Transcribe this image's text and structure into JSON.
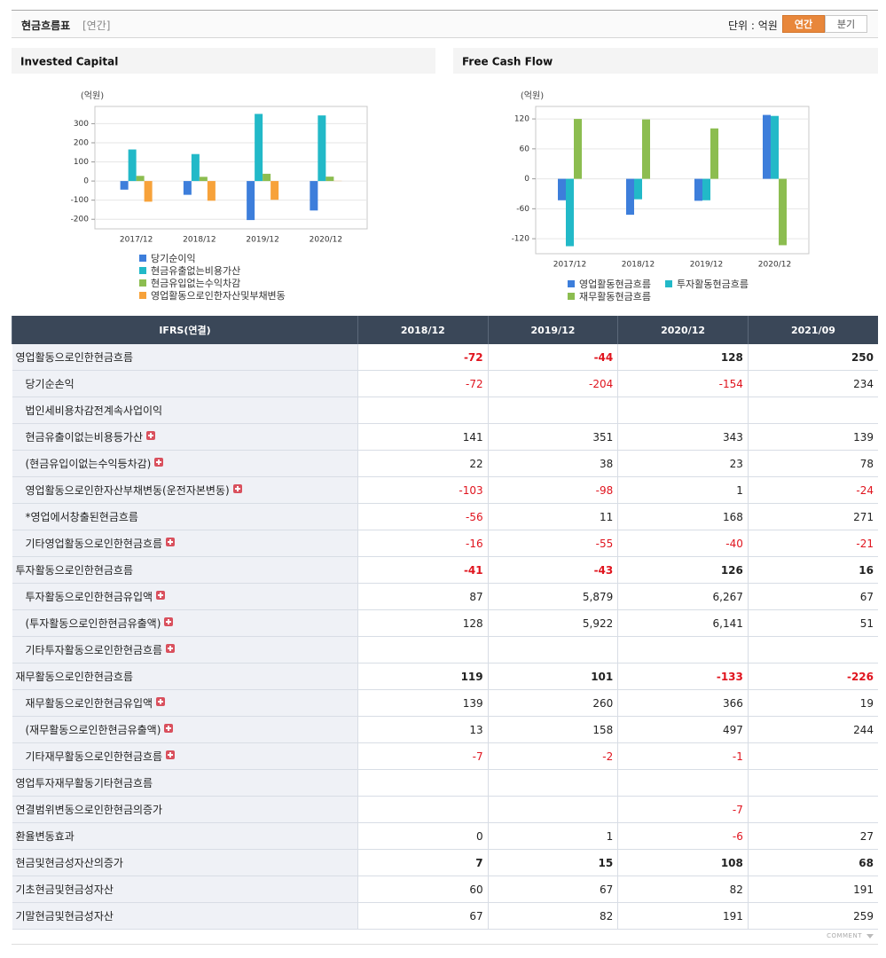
{
  "header": {
    "title": "현금흐름표",
    "period": "[연간]",
    "unit": "단위 : 억원",
    "tabs": [
      "연간",
      "분기"
    ],
    "active_tab": 0
  },
  "chart_data": [
    {
      "type": "bar",
      "title": "Invested Capital",
      "y_label": "(억원)",
      "categories": [
        "2017/12",
        "2018/12",
        "2019/12",
        "2020/12"
      ],
      "series": [
        {
          "name": "당기순이익",
          "color": "#3d7edb",
          "values": [
            -45,
            -72,
            -204,
            -154
          ]
        },
        {
          "name": "현금유출없는비용가산",
          "color": "#22b9c8",
          "values": [
            165,
            141,
            351,
            343
          ]
        },
        {
          "name": "현금유입없는수익차감",
          "color": "#8cbd50",
          "values": [
            27,
            22,
            38,
            23
          ]
        },
        {
          "name": "영업활동으로인한자산및부채변동",
          "color": "#f7a23a",
          "values": [
            -108,
            -103,
            -98,
            1
          ]
        }
      ],
      "ylim": [
        -250,
        390
      ],
      "yticks": [
        -200,
        -100,
        0,
        100,
        200,
        300
      ],
      "grid": true
    },
    {
      "type": "bar",
      "title": "Free Cash Flow",
      "y_label": "(억원)",
      "categories": [
        "2017/12",
        "2018/12",
        "2019/12",
        "2020/12"
      ],
      "series": [
        {
          "name": "영업활동현금흐름",
          "color": "#3d7edb",
          "values": [
            -43,
            -72,
            -44,
            128
          ]
        },
        {
          "name": "투자활동현금흐름",
          "color": "#22b9c8",
          "values": [
            -135,
            -41,
            -43,
            126
          ]
        },
        {
          "name": "재무활동현금흐름",
          "color": "#8cbd50",
          "values": [
            120,
            119,
            101,
            -133
          ]
        }
      ],
      "ylim": [
        -150,
        145
      ],
      "yticks": [
        -120,
        -60,
        0,
        60,
        120
      ],
      "grid": true
    }
  ],
  "table": {
    "columns": [
      "IFRS(연결)",
      "2018/12",
      "2019/12",
      "2020/12",
      "2021/09"
    ],
    "rows": [
      {
        "label": "영업활동으로인한현금흐름",
        "indent": false,
        "bold": true,
        "expandable": false,
        "values": [
          "-72",
          "-44",
          "128",
          "250"
        ]
      },
      {
        "label": "당기순손익",
        "indent": true,
        "bold": false,
        "expandable": false,
        "values": [
          "-72",
          "-204",
          "-154",
          "234"
        ]
      },
      {
        "label": "법인세비용차감전계속사업이익",
        "indent": true,
        "bold": false,
        "expandable": false,
        "values": [
          null,
          null,
          null,
          null
        ]
      },
      {
        "label": "현금유출이없는비용등가산",
        "indent": true,
        "bold": false,
        "expandable": true,
        "values": [
          "141",
          "351",
          "343",
          "139"
        ]
      },
      {
        "label": "(현금유입이없는수익등차감)",
        "indent": true,
        "bold": false,
        "expandable": true,
        "values": [
          "22",
          "38",
          "23",
          "78"
        ]
      },
      {
        "label": "영업활동으로인한자산부채변동(운전자본변동)",
        "indent": true,
        "bold": false,
        "expandable": true,
        "values": [
          "-103",
          "-98",
          "1",
          "-24"
        ]
      },
      {
        "label": "*영업에서창출된현금흐름",
        "indent": true,
        "bold": false,
        "expandable": false,
        "values": [
          "-56",
          "11",
          "168",
          "271"
        ]
      },
      {
        "label": "기타영업활동으로인한현금흐름",
        "indent": true,
        "bold": false,
        "expandable": true,
        "values": [
          "-16",
          "-55",
          "-40",
          "-21"
        ]
      },
      {
        "label": "투자활동으로인한현금흐름",
        "indent": false,
        "bold": true,
        "expandable": false,
        "values": [
          "-41",
          "-43",
          "126",
          "16"
        ]
      },
      {
        "label": "투자활동으로인한현금유입액",
        "indent": true,
        "bold": false,
        "expandable": true,
        "values": [
          "87",
          "5,879",
          "6,267",
          "67"
        ]
      },
      {
        "label": "(투자활동으로인한현금유출액)",
        "indent": true,
        "bold": false,
        "expandable": true,
        "values": [
          "128",
          "5,922",
          "6,141",
          "51"
        ]
      },
      {
        "label": "기타투자활동으로인한현금흐름",
        "indent": true,
        "bold": false,
        "expandable": true,
        "values": [
          null,
          null,
          null,
          null
        ]
      },
      {
        "label": "재무활동으로인한현금흐름",
        "indent": false,
        "bold": true,
        "expandable": false,
        "values": [
          "119",
          "101",
          "-133",
          "-226"
        ]
      },
      {
        "label": "재무활동으로인한현금유입액",
        "indent": true,
        "bold": false,
        "expandable": true,
        "values": [
          "139",
          "260",
          "366",
          "19"
        ]
      },
      {
        "label": "(재무활동으로인한현금유출액)",
        "indent": true,
        "bold": false,
        "expandable": true,
        "values": [
          "13",
          "158",
          "497",
          "244"
        ]
      },
      {
        "label": "기타재무활동으로인한현금흐름",
        "indent": true,
        "bold": false,
        "expandable": true,
        "values": [
          "-7",
          "-2",
          "-1",
          null
        ]
      },
      {
        "label": "영업투자재무활동기타현금흐름",
        "indent": false,
        "bold": false,
        "expandable": false,
        "values": [
          null,
          null,
          null,
          null
        ]
      },
      {
        "label": "연결범위변동으로인한현금의증가",
        "indent": false,
        "bold": false,
        "expandable": false,
        "values": [
          null,
          null,
          "-7",
          null
        ]
      },
      {
        "label": "환율변동효과",
        "indent": false,
        "bold": false,
        "expandable": false,
        "values": [
          "0",
          "1",
          "-6",
          "27"
        ]
      },
      {
        "label": "현금및현금성자산의증가",
        "indent": false,
        "bold": true,
        "expandable": false,
        "values": [
          "7",
          "15",
          "108",
          "68"
        ]
      },
      {
        "label": "기초현금및현금성자산",
        "indent": false,
        "bold": false,
        "expandable": false,
        "values": [
          "60",
          "67",
          "82",
          "191"
        ]
      },
      {
        "label": "기말현금및현금성자산",
        "indent": false,
        "bold": false,
        "expandable": false,
        "values": [
          "67",
          "82",
          "191",
          "259"
        ]
      }
    ]
  },
  "footer": {
    "comment": "COMMENT"
  }
}
